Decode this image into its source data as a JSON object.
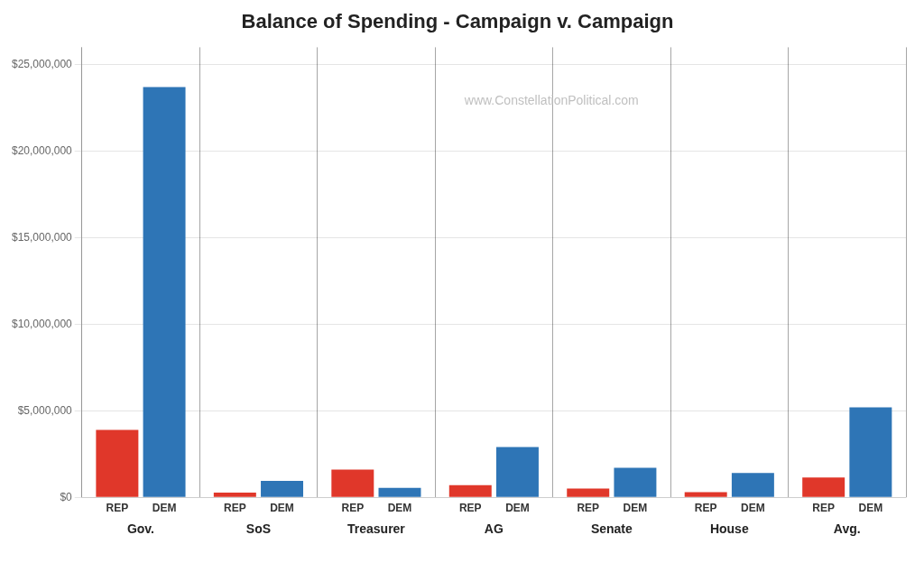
{
  "chart_data": {
    "type": "bar",
    "title": "Balance of Spending - Campaign v. Campaign",
    "annotations": [
      "www.ConstellationPolitical.com"
    ],
    "categories": [
      "Gov.",
      "SoS",
      "Treasurer",
      "AG",
      "Senate",
      "House",
      "Avg."
    ],
    "series": [
      {
        "name": "REP",
        "color": "#e0372a",
        "values": [
          3900000,
          270000,
          1600000,
          700000,
          500000,
          300000,
          1150000
        ]
      },
      {
        "name": "DEM",
        "color": "#2e75b6",
        "values": [
          23700000,
          950000,
          550000,
          2900000,
          1700000,
          1400000,
          5200000
        ]
      }
    ],
    "ylim": [
      0,
      26000000
    ],
    "yticks": [
      {
        "value": 0,
        "label": "$0"
      },
      {
        "value": 5000000,
        "label": "$5,000,000"
      },
      {
        "value": 10000000,
        "label": "$10,000,000"
      },
      {
        "value": 15000000,
        "label": "$15,000,000"
      },
      {
        "value": 20000000,
        "label": "$20,000,000"
      },
      {
        "value": 25000000,
        "label": "$25,000,000"
      }
    ],
    "grid": true
  }
}
